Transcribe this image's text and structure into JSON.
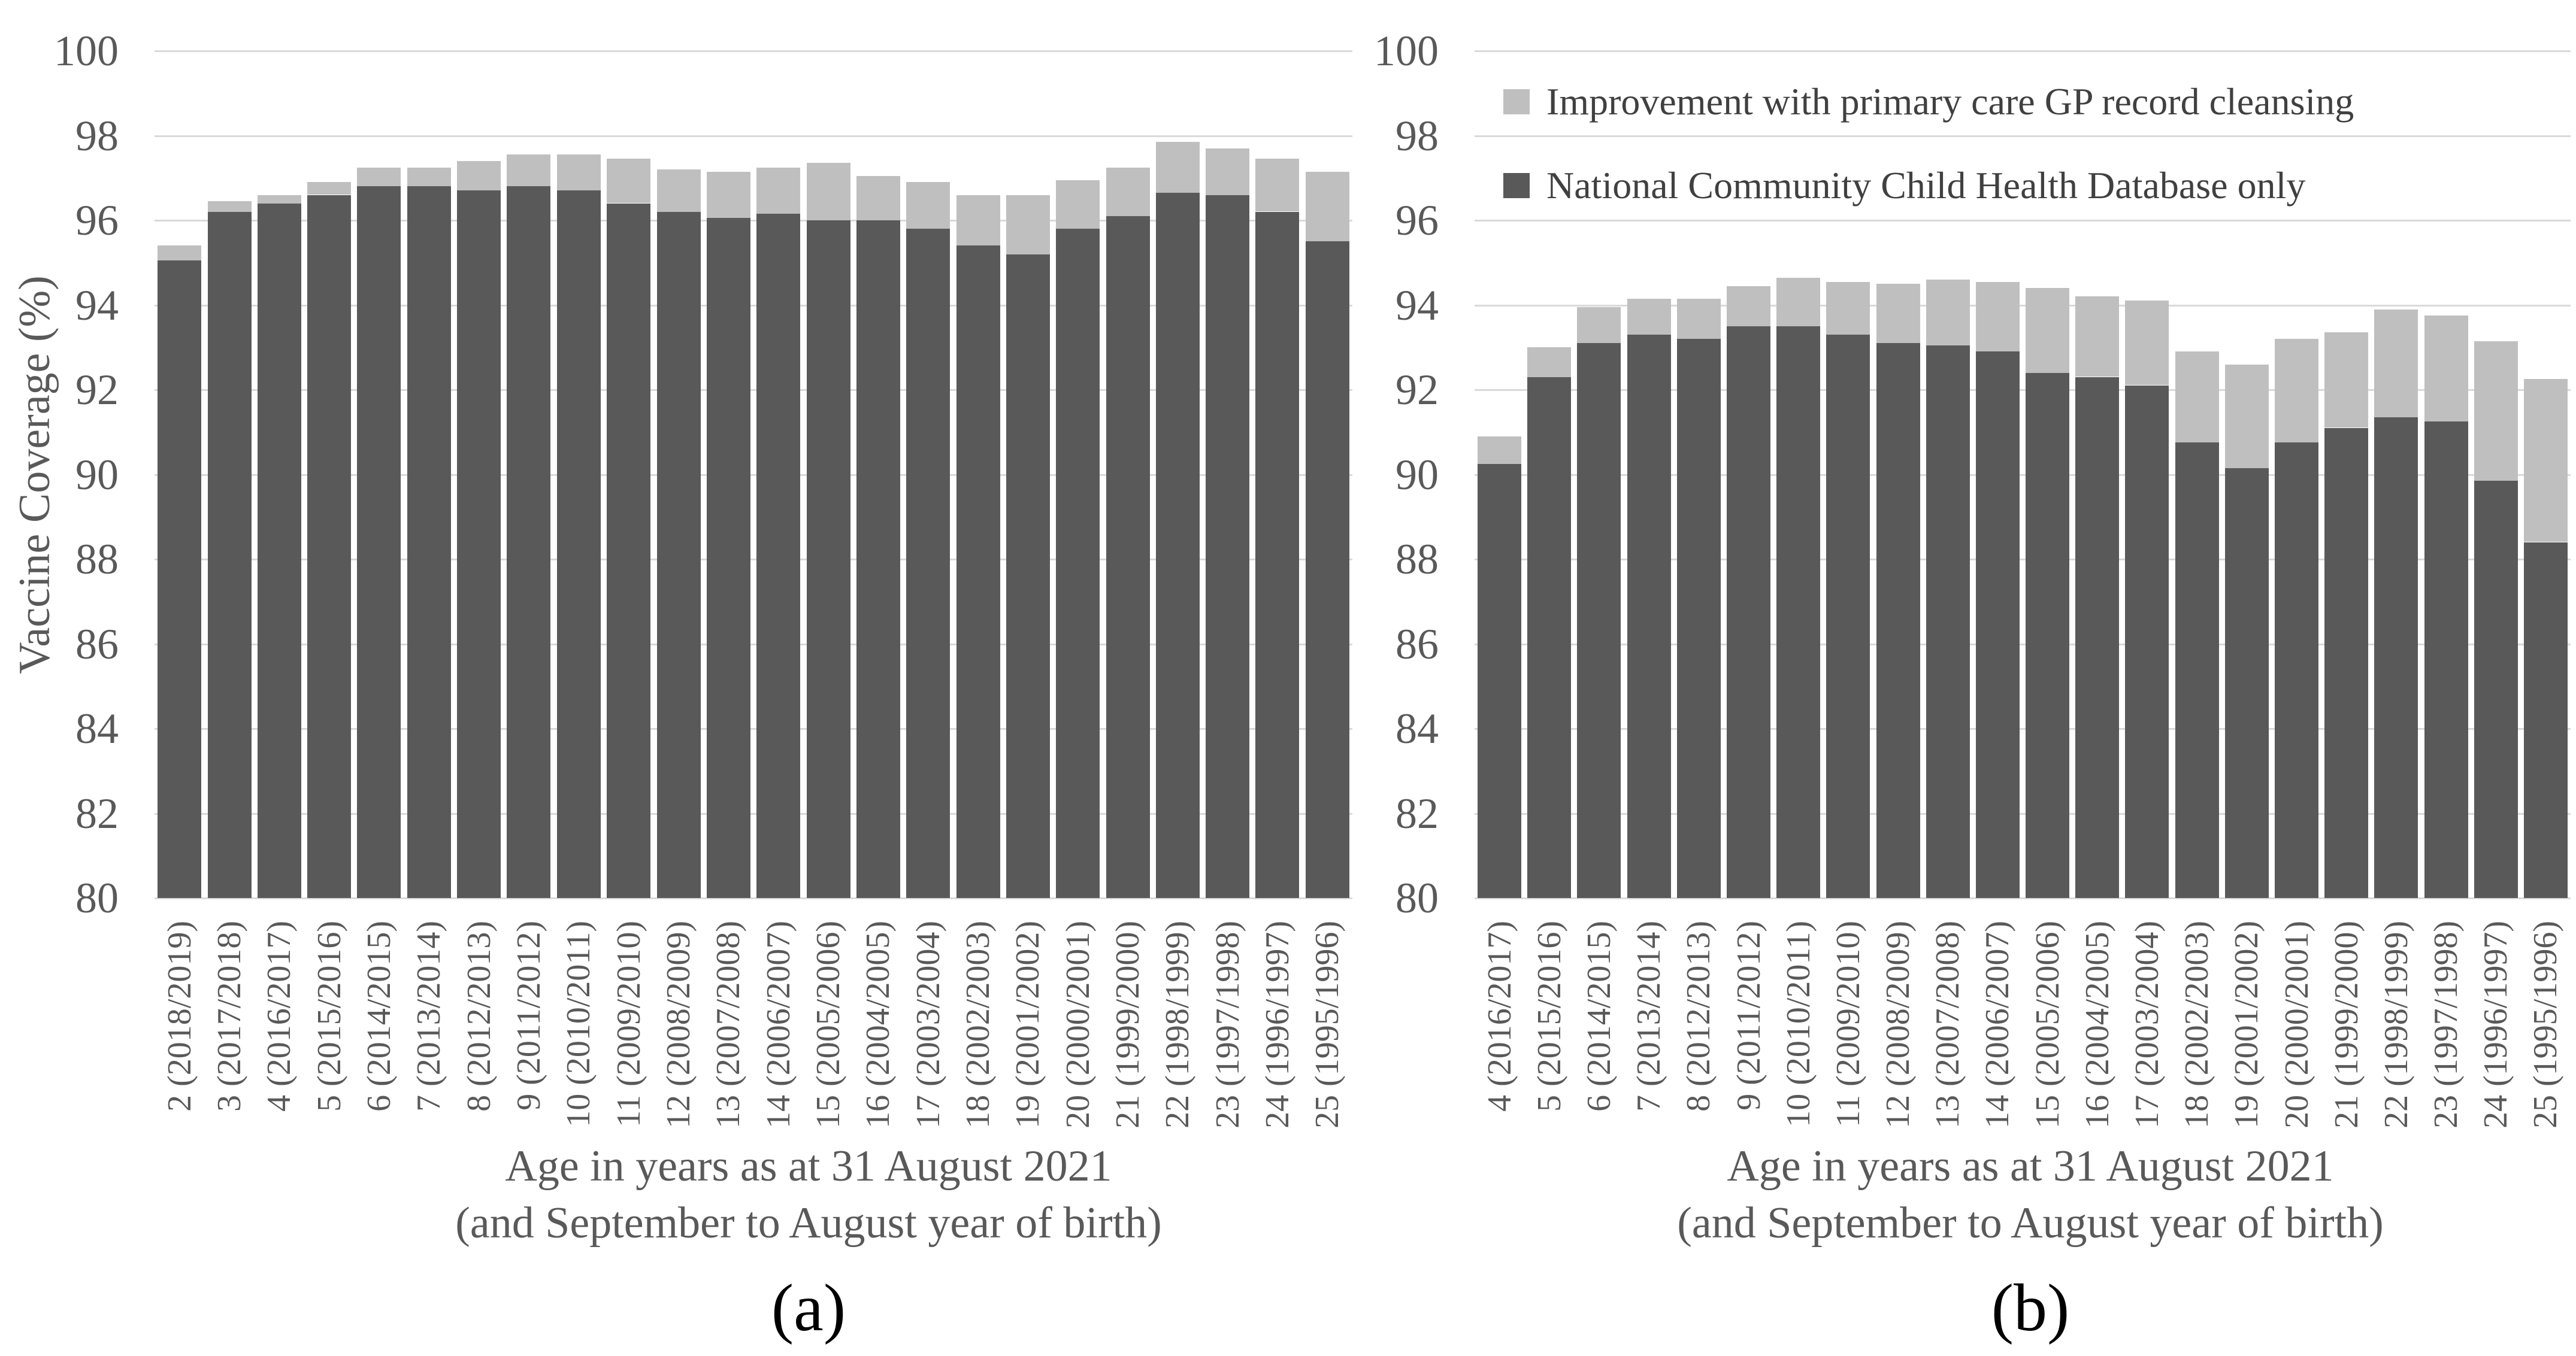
{
  "colors": {
    "bar_dark": "#595959",
    "bar_light": "#bfbfbf",
    "gridline": "#d9d9d9",
    "tick_label": "#595959",
    "axis_title": "#595959",
    "legend_text": "#404040",
    "caption": "#000000",
    "background": "#ffffff"
  },
  "chart_data": [
    {
      "type": "bar",
      "stacked": true,
      "title": "(a)",
      "ylabel": "Vaccine Coverage (%)",
      "xlabel_line1": "Age in years as at 31 August 2021",
      "xlabel_line2": "(and September to August year of birth)",
      "ylim": [
        80,
        100
      ],
      "ytick_step": 2,
      "grid": true,
      "legend_position": "none",
      "categories": [
        "2 (2018/2019)",
        "3 (2017/2018)",
        "4 (2016/2017)",
        "5 (2015/2016)",
        "6 (2014/2015)",
        "7 (2013/2014)",
        "8 (2012/2013)",
        "9 (2011/2012)",
        "10 (2010/2011)",
        "11 (2009/2010)",
        "12 (2008/2009)",
        "13 (2007/2008)",
        "14 (2006/2007)",
        "15 (2005/2006)",
        "16 (2004/2005)",
        "17 (2003/2004)",
        "18 (2002/2003)",
        "19 (2001/2002)",
        "20 (2000/2001)",
        "21 (1999/2000)",
        "22 (1998/1999)",
        "23 (1997/1998)",
        "24 (1996/1997)",
        "25 (1995/1996)"
      ],
      "series": [
        {
          "name": "National Community Child Health Database only",
          "role": "base",
          "values": [
            95.05,
            96.2,
            96.4,
            96.6,
            96.8,
            96.8,
            96.7,
            96.8,
            96.7,
            96.4,
            96.2,
            96.05,
            96.15,
            96.0,
            96.0,
            95.8,
            95.4,
            95.2,
            95.8,
            96.1,
            96.65,
            96.6,
            96.2,
            95.5
          ]
        },
        {
          "name": "Improvement with primary care GP record cleansing",
          "role": "stacked-increment",
          "values": [
            0.35,
            0.25,
            0.2,
            0.3,
            0.45,
            0.45,
            0.7,
            0.75,
            0.85,
            1.05,
            1.0,
            1.1,
            1.1,
            1.35,
            1.05,
            1.1,
            1.2,
            1.4,
            1.15,
            1.15,
            1.2,
            1.1,
            1.25,
            1.65
          ]
        }
      ]
    },
    {
      "type": "bar",
      "stacked": true,
      "title": "(b)",
      "ylabel": "",
      "xlabel_line1": "Age in years as at 31 August 2021",
      "xlabel_line2": "(and September to August year of birth)",
      "ylim": [
        80,
        100
      ],
      "ytick_step": 2,
      "grid": true,
      "legend_position": "top-left",
      "categories": [
        "4 (2016/2017)",
        "5 (2015/2016)",
        "6 (2014/2015)",
        "7 (2013/2014)",
        "8 (2012/2013)",
        "9 (2011/2012)",
        "10 (2010/2011)",
        "11 (2009/2010)",
        "12 (2008/2009)",
        "13 (2007/2008)",
        "14 (2006/2007)",
        "15 (2005/2006)",
        "16 (2004/2005)",
        "17 (2003/2004)",
        "18 (2002/2003)",
        "19 (2001/2002)",
        "20 (2000/2001)",
        "21 (1999/2000)",
        "22 (1998/1999)",
        "23 (1997/1998)",
        "24 (1996/1997)",
        "25 (1995/1996)"
      ],
      "series": [
        {
          "name": "National Community Child Health Database only",
          "role": "base",
          "values": [
            90.25,
            92.3,
            93.1,
            93.3,
            93.2,
            93.5,
            93.5,
            93.3,
            93.1,
            93.05,
            92.9,
            92.4,
            92.3,
            92.1,
            90.75,
            90.15,
            90.75,
            91.1,
            91.35,
            91.25,
            89.85,
            88.4
          ]
        },
        {
          "name": "Improvement with primary care GP record cleansing",
          "role": "stacked-increment",
          "values": [
            0.65,
            0.7,
            0.85,
            0.85,
            0.95,
            0.95,
            1.15,
            1.25,
            1.4,
            1.55,
            1.65,
            2.0,
            1.9,
            2.0,
            2.15,
            2.45,
            2.45,
            2.25,
            2.55,
            2.5,
            3.3,
            3.85
          ]
        }
      ]
    }
  ]
}
